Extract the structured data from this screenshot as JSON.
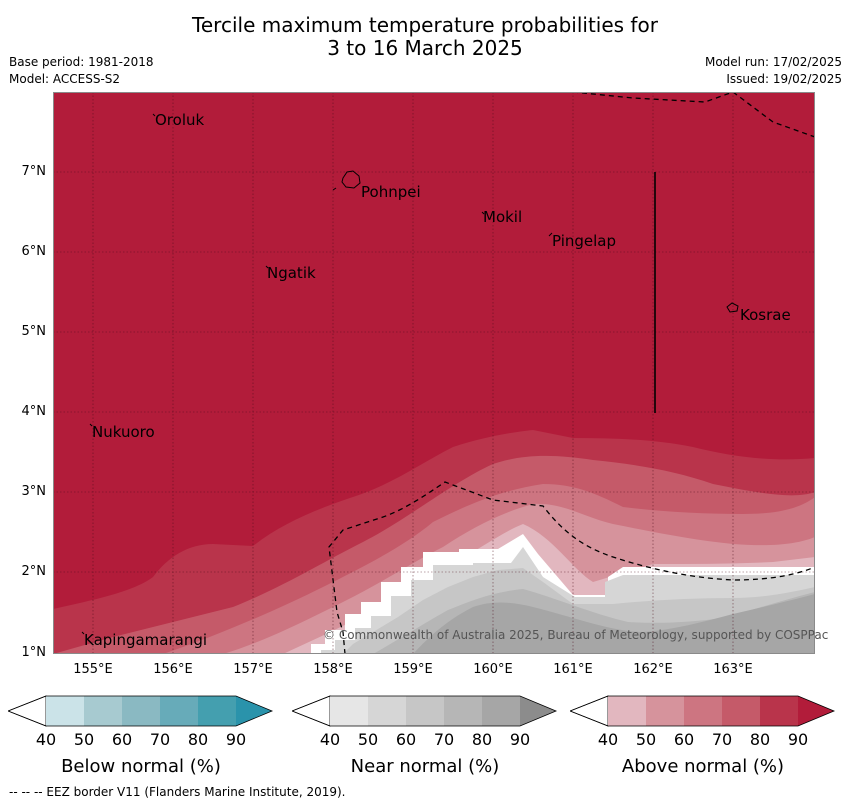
{
  "title": {
    "line1": "Tercile maximum temperature probabilities for",
    "line2": "3 to 16 March 2025"
  },
  "meta": {
    "base_period": "Base period: 1981-2018",
    "model": "Model: ACCESS-S2",
    "model_run": "Model run: 17/02/2025",
    "issued": "Issued: 19/02/2025"
  },
  "axes": {
    "x_ticks": [
      "155°E",
      "156°E",
      "157°E",
      "158°E",
      "159°E",
      "160°E",
      "161°E",
      "162°E",
      "163°E"
    ],
    "y_ticks": [
      "7°N",
      "6°N",
      "5°N",
      "4°N",
      "3°N",
      "2°N",
      "1°N"
    ]
  },
  "places": {
    "oroluk": "Oroluk",
    "pohnpei": "Pohnpei",
    "mokil": "Mokil",
    "pingelap": "Pingelap",
    "ngatik": "Ngatik",
    "kosrae": "Kosrae",
    "nukuoro": "Nukuoro",
    "kapingamarangi": "Kapingamarangi"
  },
  "copyright": "© Commonwealth of Australia 2025, Bureau of Meteorology, supported by COSPPac",
  "legends": {
    "below": {
      "title": "Below normal (%)",
      "ticks": [
        "40",
        "50",
        "60",
        "70",
        "80",
        "90"
      ],
      "colors": [
        "#cbe3e8",
        "#a7cad0",
        "#8ab9c2",
        "#67abb9",
        "#449faf",
        "#2a93ab"
      ]
    },
    "near": {
      "title": "Near normal (%)",
      "ticks": [
        "40",
        "50",
        "60",
        "70",
        "80",
        "90"
      ],
      "colors": [
        "#e6e6e6",
        "#d6d6d6",
        "#c6c6c6",
        "#b6b6b6",
        "#a6a6a6",
        "#8c8c8c"
      ]
    },
    "above": {
      "title": "Above normal (%)",
      "ticks": [
        "40",
        "50",
        "60",
        "70",
        "80",
        "90"
      ],
      "colors": [
        "#e2b7bf",
        "#d6939c",
        "#cd7581",
        "#c55a69",
        "#b9344b",
        "#b21c3a"
      ]
    }
  },
  "footer": "--  --  -- EEZ border V11 (Flanders Marine Institute, 2019)."
}
